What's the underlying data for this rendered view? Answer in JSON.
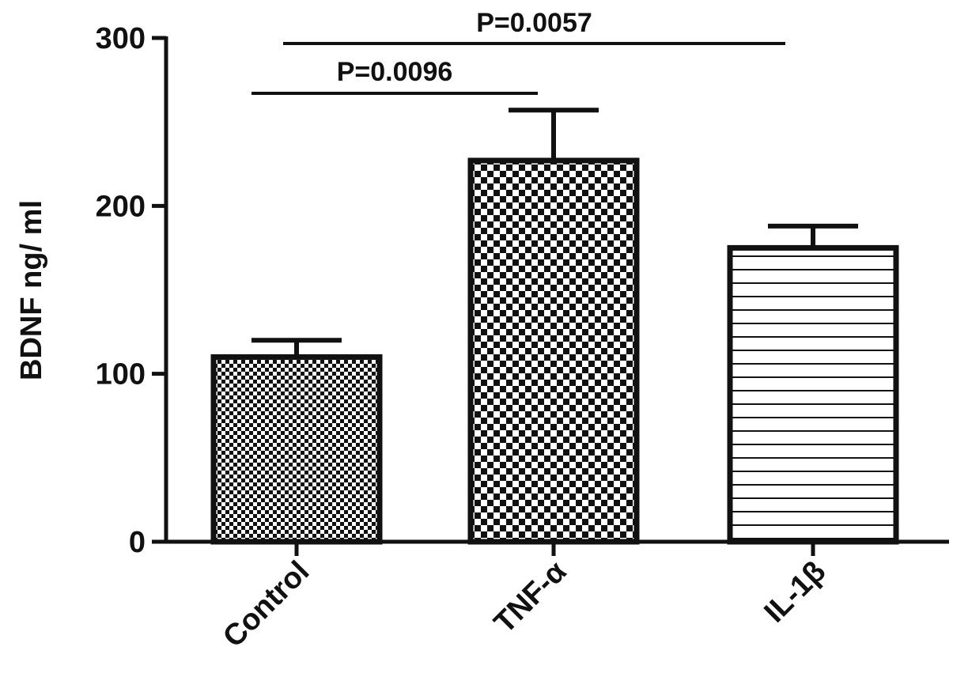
{
  "chart_data": {
    "type": "bar",
    "categories": [
      "Control",
      "TNF-α",
      "IL-1β"
    ],
    "values": [
      110,
      227,
      175
    ],
    "errors": [
      10,
      30,
      13
    ],
    "ylabel": "BDNF ng/ ml",
    "xlabel": "",
    "ylim": [
      0,
      300
    ],
    "yticks": [
      0,
      100,
      200,
      300
    ],
    "grid": false,
    "patterns": [
      "fine-checker",
      "coarse-checker",
      "horizontal-lines"
    ],
    "significance": [
      {
        "from": "Control",
        "to": "TNF-α",
        "label": "P=0.0096"
      },
      {
        "from": "Control",
        "to": "IL-1β",
        "label": "P=0.0057"
      }
    ],
    "colors": {
      "ink": "#111111",
      "background": "#ffffff"
    }
  }
}
